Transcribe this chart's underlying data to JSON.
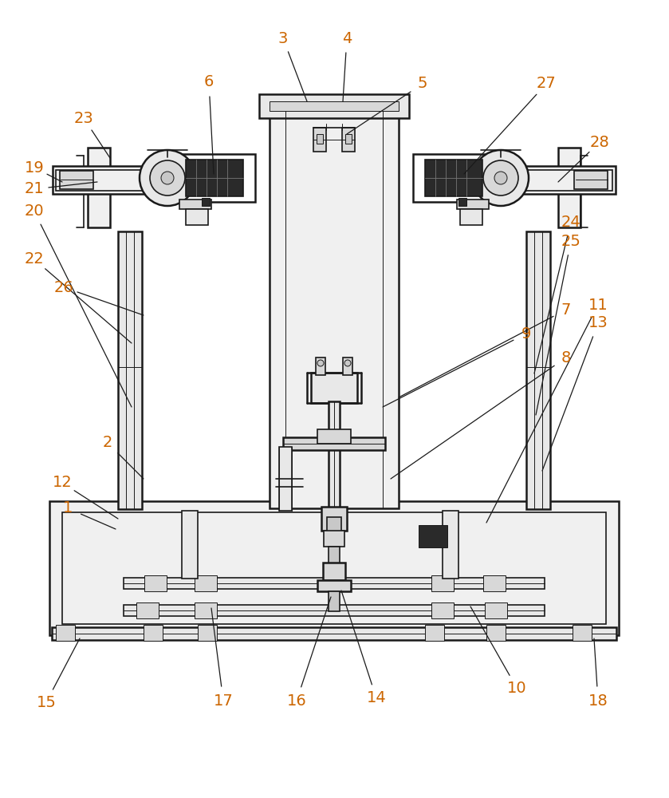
{
  "bg_color": "#ffffff",
  "line_color": "#1a1a1a",
  "label_color": "#cc6600",
  "fig_width": 8.39,
  "fig_height": 10.0,
  "dpi": 100,
  "annotations": [
    [
      "1",
      85,
      637,
      145,
      663
    ],
    [
      "2",
      135,
      555,
      180,
      600
    ],
    [
      "3",
      355,
      48,
      385,
      127
    ],
    [
      "4",
      435,
      48,
      430,
      127
    ],
    [
      "5",
      530,
      105,
      435,
      168
    ],
    [
      "6",
      262,
      103,
      268,
      218
    ],
    [
      "7",
      710,
      388,
      500,
      498
    ],
    [
      "8",
      710,
      448,
      490,
      600
    ],
    [
      "9",
      660,
      418,
      480,
      510
    ],
    [
      "10",
      648,
      862,
      590,
      760
    ],
    [
      "11",
      750,
      382,
      610,
      655
    ],
    [
      "12",
      78,
      605,
      148,
      650
    ],
    [
      "13",
      750,
      405,
      680,
      590
    ],
    [
      "14",
      472,
      875,
      428,
      740
    ],
    [
      "15",
      58,
      880,
      100,
      800
    ],
    [
      "16",
      372,
      878,
      415,
      748
    ],
    [
      "17",
      280,
      878,
      265,
      762
    ],
    [
      "18",
      750,
      878,
      745,
      800
    ],
    [
      "19",
      43,
      210,
      78,
      228
    ],
    [
      "20",
      43,
      265,
      165,
      510
    ],
    [
      "21",
      43,
      237,
      122,
      228
    ],
    [
      "22",
      43,
      325,
      165,
      430
    ],
    [
      "23",
      105,
      148,
      138,
      198
    ],
    [
      "24",
      716,
      278,
      670,
      468
    ],
    [
      "25",
      716,
      302,
      672,
      520
    ],
    [
      "26",
      80,
      360,
      180,
      395
    ],
    [
      "27",
      685,
      105,
      582,
      218
    ],
    [
      "28",
      752,
      178,
      700,
      228
    ]
  ]
}
